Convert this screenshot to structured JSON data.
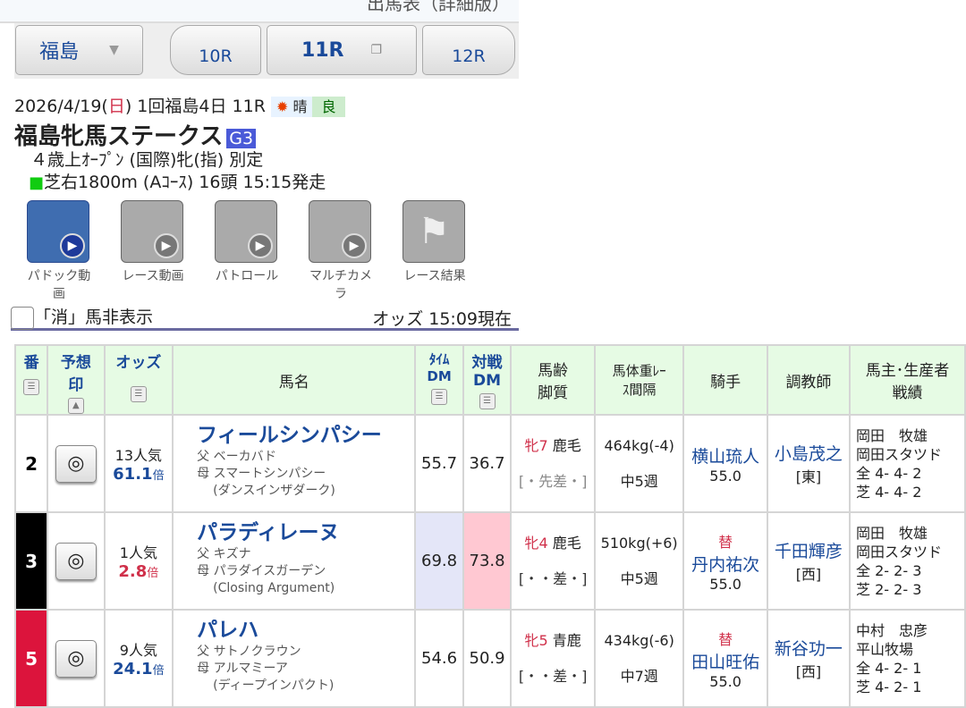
{
  "header": {
    "top_link": "出馬表（詳細版）"
  },
  "nav": {
    "venue": "福島",
    "prev": "10R",
    "current": "11R",
    "next": "12R"
  },
  "race": {
    "date": "2026/4/19(",
    "dow": "日",
    "date_tail": ") 1回福島4日 11R",
    "weather": "晴",
    "track": "良",
    "name": "福島牝馬ステークス",
    "grade": "G3",
    "conditions": "４歳上ｵｰﾌﾟﾝ (国際)牝(指) 別定",
    "course": "芝右1800m (Aｺｰｽ) 16頭 15:15発走"
  },
  "media": [
    {
      "label": "パドック動画"
    },
    {
      "label": "レース動画"
    },
    {
      "label": "パトロール"
    },
    {
      "label": "マルチカメラ"
    },
    {
      "label": "レース結果"
    }
  ],
  "filter": {
    "hide_scratched": "「消」馬非表示",
    "odds_time": "オッズ 15:09現在"
  },
  "table": {
    "headers": {
      "num": "番",
      "mark": "予想印",
      "odds": "オッズ",
      "name": "馬名",
      "time_dm": "ﾀｲﾑDM",
      "vs_dm": "対戦DM",
      "age": "馬齢脚質",
      "weight": "馬体重ﾚｰｽ間隔",
      "jockey": "騎手",
      "trainer": "調教師",
      "owner": "馬主･生産者戦績"
    },
    "rows": [
      {
        "num": "2",
        "frame_color": "#ffffff",
        "mark": "◎",
        "pop": "13人気",
        "odds": "61.1",
        "odds_unit": "倍",
        "name": "フィールシンパシー",
        "sire": "父 ベーカバド",
        "dam": "母 スマートシンパシー",
        "damsire": "(ダンスインザダーク)",
        "time_dm": "55.7",
        "vs_dm": "36.7",
        "sex_age": "牝7",
        "coat": "鹿毛",
        "style": "[・先差・]",
        "weight": "464kg(-4)",
        "interval": "中5週",
        "change": "",
        "jockey": "横山琉人",
        "jweight": "55.0",
        "trainer": "小島茂之",
        "region": "[東]",
        "owner": "岡田　牧雄",
        "breeder": "岡田スタツド",
        "rec_all": "全 4- 4- 2",
        "rec_turf": "芝 4- 4- 2"
      },
      {
        "num": "3",
        "frame_color": "#000000",
        "mark": "◎",
        "pop": "1人気",
        "odds": "2.8",
        "odds_unit": "倍",
        "name": "パラディレーヌ",
        "sire": "父 キズナ",
        "dam": "母 パラダイスガーデン",
        "damsire": "(Closing Argument)",
        "time_dm": "69.8",
        "vs_dm": "73.8",
        "sex_age": "牝4",
        "coat": "鹿毛",
        "style": "[・・差・]",
        "weight": "510kg(+6)",
        "interval": "中5週",
        "change": "替",
        "jockey": "丹内祐次",
        "jweight": "55.0",
        "trainer": "千田輝彦",
        "region": "[西]",
        "owner": "岡田　牧雄",
        "breeder": "岡田スタツド",
        "rec_all": "全 2- 2- 3",
        "rec_turf": "芝 2- 2- 3"
      },
      {
        "num": "5",
        "frame_color": "#dc143c",
        "mark": "◎",
        "pop": "9人気",
        "odds": "24.1",
        "odds_unit": "倍",
        "name": "パレハ",
        "sire": "父 サトノクラウン",
        "dam": "母 アルマミーア",
        "damsire": "(ディープインパクト)",
        "time_dm": "54.6",
        "vs_dm": "50.9",
        "sex_age": "牝5",
        "coat": "青鹿",
        "style": "[・・差・]",
        "weight": "434kg(-6)",
        "interval": "中7週",
        "change": "替",
        "jockey": "田山旺佑",
        "jweight": "55.0",
        "trainer": "新谷功一",
        "region": "[西]",
        "owner": "中村　忠彦",
        "breeder": "平山牧場",
        "rec_all": "全 4- 2- 1",
        "rec_turf": "芝 4- 2- 1"
      }
    ]
  }
}
